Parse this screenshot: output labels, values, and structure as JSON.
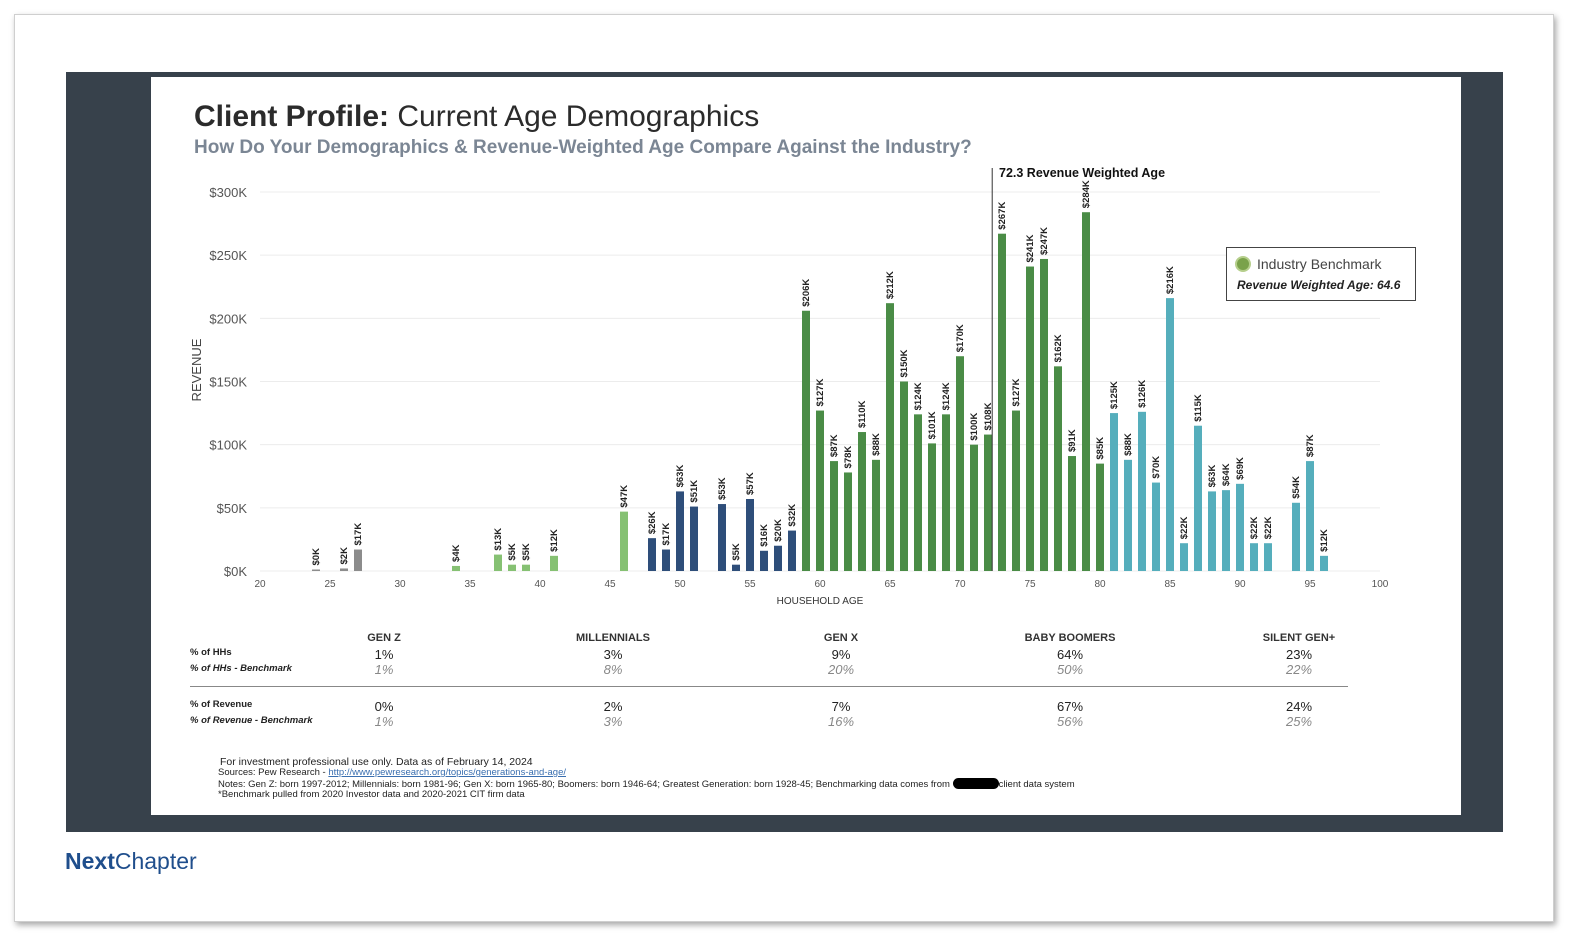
{
  "title": {
    "bold": "Client Profile:",
    "rest": " Current Age Demographics"
  },
  "subtitle": "How Do Your Demographics & Revenue-Weighted Age Compare Against the Industry?",
  "benchmark_box": {
    "title": "Industry Benchmark",
    "value": "Revenue Weighted Age: 64.6"
  },
  "colors": {
    "gray": "#8c8c8c",
    "light_green": "#86c173",
    "navy": "#2e4e7a",
    "green": "#4a8c46",
    "teal": "#55aebc"
  },
  "chart_data": {
    "type": "bar",
    "xlabel": "HOUSEHOLD AGE",
    "ylabel": "REVENUE",
    "xlim": [
      20,
      100
    ],
    "ylim": [
      0,
      300
    ],
    "x_ticks": [
      20,
      25,
      30,
      35,
      40,
      45,
      50,
      55,
      60,
      65,
      70,
      75,
      80,
      85,
      90,
      95,
      100
    ],
    "y_ticks": [
      0,
      50,
      100,
      150,
      200,
      250,
      300
    ],
    "y_tick_labels": [
      "$0K",
      "$50K",
      "$100K",
      "$150K",
      "$200K",
      "$250K",
      "$300K"
    ],
    "reference_line": {
      "x": 72.3,
      "label": "72.3 Revenue Weighted Age"
    },
    "series": [
      {
        "group": "gray",
        "points": [
          [
            24,
            0,
            "$0K"
          ],
          [
            26,
            2,
            "$2K"
          ],
          [
            27,
            17,
            "$17K"
          ]
        ]
      },
      {
        "group": "light_green",
        "points": [
          [
            34,
            4,
            "$4K"
          ],
          [
            37,
            13,
            "$13K"
          ],
          [
            38,
            5,
            "$5K"
          ],
          [
            39,
            5,
            "$5K"
          ],
          [
            41,
            12,
            "$12K"
          ],
          [
            46,
            47,
            "$47K"
          ]
        ]
      },
      {
        "group": "navy",
        "points": [
          [
            48,
            26,
            "$26K"
          ],
          [
            49,
            17,
            "$17K"
          ],
          [
            50,
            63,
            "$63K"
          ],
          [
            51,
            51,
            "$51K"
          ],
          [
            53,
            53,
            "$53K"
          ],
          [
            54,
            5,
            "$5K"
          ],
          [
            55,
            57,
            "$57K"
          ],
          [
            56,
            16,
            "$16K"
          ],
          [
            57,
            20,
            "$20K"
          ],
          [
            58,
            32,
            "$32K"
          ]
        ]
      },
      {
        "group": "green",
        "points": [
          [
            59,
            206,
            "$206K"
          ],
          [
            60,
            127,
            "$127K"
          ],
          [
            61,
            87,
            "$87K"
          ],
          [
            62,
            78,
            "$78K"
          ],
          [
            63,
            110,
            "$110K"
          ],
          [
            64,
            88,
            "$88K"
          ],
          [
            65,
            212,
            "$212K"
          ],
          [
            66,
            150,
            "$150K"
          ],
          [
            67,
            124,
            "$124K"
          ],
          [
            68,
            101,
            "$101K"
          ],
          [
            69,
            124,
            "$124K"
          ],
          [
            70,
            170,
            "$170K"
          ],
          [
            71,
            100,
            "$100K"
          ],
          [
            72,
            108,
            "$108K"
          ],
          [
            73,
            267,
            "$267K"
          ],
          [
            74,
            127,
            "$127K"
          ],
          [
            75,
            241,
            "$241K"
          ],
          [
            76,
            247,
            "$247K"
          ],
          [
            77,
            162,
            "$162K"
          ],
          [
            78,
            91,
            "$91K"
          ],
          [
            79,
            284,
            "$284K"
          ],
          [
            80,
            85,
            "$85K"
          ]
        ]
      },
      {
        "group": "teal",
        "points": [
          [
            81,
            125,
            "$125K"
          ],
          [
            82,
            88,
            "$88K"
          ],
          [
            83,
            126,
            "$126K"
          ],
          [
            84,
            70,
            "$70K"
          ],
          [
            85,
            216,
            "$216K"
          ],
          [
            86,
            22,
            "$22K"
          ],
          [
            87,
            115,
            "$115K"
          ],
          [
            88,
            63,
            "$63K"
          ],
          [
            89,
            64,
            "$64K"
          ],
          [
            90,
            69,
            "$69K"
          ],
          [
            91,
            22,
            "$22K"
          ],
          [
            92,
            22,
            "$22K"
          ],
          [
            94,
            54,
            "$54K"
          ],
          [
            95,
            87,
            "$87K"
          ],
          [
            96,
            12,
            "$12K"
          ]
        ]
      }
    ]
  },
  "table": {
    "row_labels": [
      "% of HHs",
      "% of HHs - Benchmark",
      "% of Revenue",
      "% of Revenue - Benchmark"
    ],
    "columns": [
      {
        "header": "GEN Z",
        "hh": "1%",
        "hh_bm": "1%",
        "rev": "0%",
        "rev_bm": "1%"
      },
      {
        "header": "MILLENNIALS",
        "hh": "3%",
        "hh_bm": "8%",
        "rev": "2%",
        "rev_bm": "3%"
      },
      {
        "header": "GEN X",
        "hh": "9%",
        "hh_bm": "20%",
        "rev": "7%",
        "rev_bm": "16%"
      },
      {
        "header": "BABY BOOMERS",
        "hh": "64%",
        "hh_bm": "50%",
        "rev": "67%",
        "rev_bm": "56%"
      },
      {
        "header": "SILENT GEN+",
        "hh": "23%",
        "hh_bm": "22%",
        "rev": "24%",
        "rev_bm": "25%"
      }
    ]
  },
  "footer": {
    "line1": "For investment professional use only. Data as of February 14, 2024",
    "sources_prefix": "Sources: Pew Research - ",
    "sources_link": "http://www.pewresearch.org/topics/generations-and-age/",
    "notes_a": "Notes: Gen Z: born 1997-2012; Millennials: born 1981-96; Gen X: born 1965-80; Boomers: born 1946-64; Greatest Generation: born 1928-45; Benchmarking data comes from",
    "notes_b": "client data system",
    "benchmark_note": "*Benchmark pulled from 2020 Investor data and 2020-2021 CIT firm data"
  },
  "logo": {
    "bold": "Next",
    "rest": "Chapter"
  }
}
